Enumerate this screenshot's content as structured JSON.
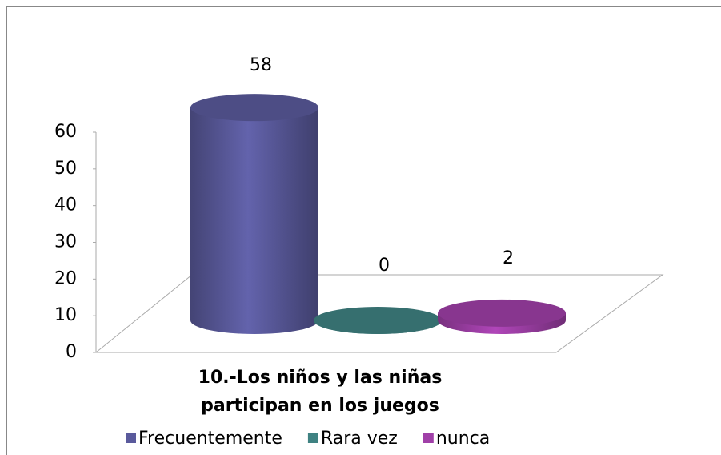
{
  "chart_data": {
    "type": "bar3d",
    "categories": [
      "10.-Los niños y las niñas participan en los juegos"
    ],
    "series": [
      {
        "name": "Frecuentemente",
        "color": "#5a5a9c",
        "values": [
          58
        ]
      },
      {
        "name": "Rara vez",
        "color": "#3f8282",
        "values": [
          0
        ]
      },
      {
        "name": "nunca",
        "color": "#a040a8",
        "values": [
          2
        ]
      }
    ],
    "ylim": [
      0,
      60
    ],
    "yticks": [
      0,
      10,
      20,
      30,
      40,
      50,
      60
    ],
    "legend": "bottom"
  }
}
